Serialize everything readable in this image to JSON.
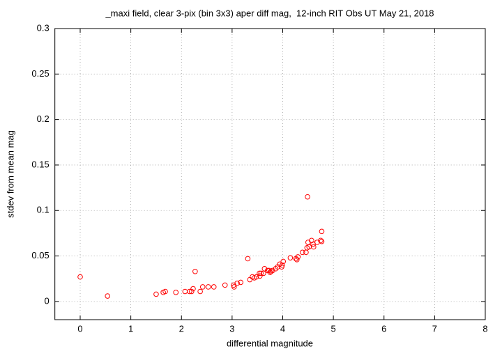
{
  "chart_data": {
    "type": "scatter",
    "title": "_maxi field, clear 3-pix (bin 3x3) aper diff mag,  12-inch RIT Obs UT May 21, 2018",
    "xlabel": "differential magnitude",
    "ylabel": "stdev from mean mag",
    "xlim": [
      -0.5,
      8
    ],
    "ylim": [
      -0.02,
      0.3
    ],
    "xticks": [
      0,
      1,
      2,
      3,
      4,
      5,
      6,
      7,
      8
    ],
    "yticks": [
      0,
      0.05,
      0.1,
      0.15,
      0.2,
      0.25,
      0.3
    ],
    "grid": true,
    "color": "#ff0000",
    "x": [
      0,
      0.54,
      1.5,
      1.64,
      1.68,
      1.89,
      2.07,
      2.16,
      2.2,
      2.23,
      2.27,
      2.37,
      2.42,
      2.53,
      2.64,
      2.86,
      3.03,
      3.04,
      3.1,
      3.17,
      3.31,
      3.35,
      3.4,
      3.44,
      3.48,
      3.54,
      3.57,
      3.55,
      3.62,
      3.64,
      3.7,
      3.73,
      3.75,
      3.77,
      3.8,
      3.86,
      3.9,
      3.94,
      3.98,
      3.99,
      4.01,
      4.15,
      4.26,
      4.28,
      4.3,
      4.39,
      4.46,
      4.48,
      4.5,
      4.52,
      4.49,
      4.6,
      4.57,
      4.61,
      4.68,
      4.75,
      4.77,
      4.77
    ],
    "y": [
      0.027,
      0.006,
      0.008,
      0.01,
      0.011,
      0.01,
      0.011,
      0.011,
      0.011,
      0.014,
      0.033,
      0.011,
      0.016,
      0.016,
      0.016,
      0.018,
      0.018,
      0.016,
      0.02,
      0.021,
      0.047,
      0.024,
      0.027,
      0.026,
      0.027,
      0.031,
      0.031,
      0.028,
      0.031,
      0.036,
      0.034,
      0.034,
      0.032,
      0.033,
      0.034,
      0.036,
      0.038,
      0.041,
      0.038,
      0.04,
      0.044,
      0.048,
      0.047,
      0.046,
      0.049,
      0.054,
      0.054,
      0.059,
      0.065,
      0.06,
      0.115,
      0.063,
      0.067,
      0.06,
      0.065,
      0.067,
      0.066,
      0.077
    ]
  }
}
